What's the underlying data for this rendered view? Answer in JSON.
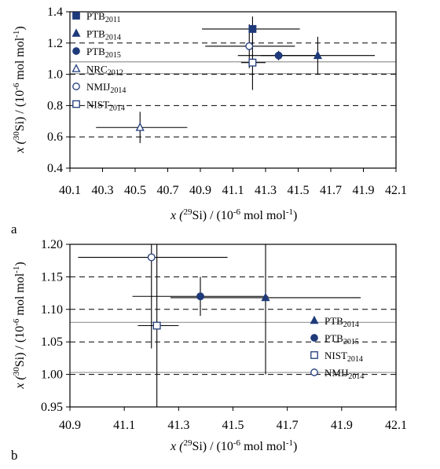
{
  "chart_data": [
    {
      "panel_label": "a",
      "type": "scatter",
      "xlabel": "x (29Si) / (10-6 mol mol-1)",
      "ylabel": "x (30Si) / (10-6 mol mol-1)",
      "xlim": [
        40.1,
        42.1
      ],
      "ylim": [
        0.4,
        1.4
      ],
      "xticks": [
        "40.1",
        "40.3",
        "40.5",
        "40.7",
        "40.9",
        "41.1",
        "41.3",
        "41.5",
        "41.7",
        "41.9",
        "42.1"
      ],
      "yticks": [
        "0.4",
        "0.6",
        "0.8",
        "1.0",
        "1.2",
        "1.4"
      ],
      "dashed_gridlines_y": [
        0.6,
        0.8,
        1.0,
        1.2
      ],
      "solid_reference_lines_y": [
        1.005,
        1.08
      ],
      "legend_position": "left",
      "series": [
        {
          "name": "PTB2011",
          "base": "PTB",
          "sub": "2011",
          "marker": "square-filled",
          "x": 41.22,
          "y": 1.29,
          "xerr": [
            40.91,
            41.51
          ],
          "yerr": [
            1.21,
            1.37
          ]
        },
        {
          "name": "PTB2014",
          "base": "PTB",
          "sub": "2014",
          "marker": "triangle-filled",
          "x": 41.62,
          "y": 1.12,
          "xerr": [
            41.27,
            41.97
          ],
          "yerr": [
            1.0,
            1.24
          ]
        },
        {
          "name": "PTB2015",
          "base": "PTB",
          "sub": "2015",
          "marker": "circle-filled",
          "x": 41.38,
          "y": 1.12,
          "xerr": [
            41.13,
            41.63
          ],
          "yerr": [
            1.09,
            1.15
          ]
        },
        {
          "name": "NRC2012",
          "base": "NRC",
          "sub": "2012",
          "marker": "triangle-open",
          "x": 40.53,
          "y": 0.66,
          "xerr": [
            40.26,
            40.82
          ],
          "yerr": [
            0.56,
            0.76
          ]
        },
        {
          "name": "NMIJ2014",
          "base": "NMIJ",
          "sub": "2014",
          "marker": "circle-open",
          "x": 41.2,
          "y": 1.18,
          "xerr": [
            40.93,
            41.48
          ],
          "yerr": [
            1.04,
            1.32
          ]
        },
        {
          "name": "NIST2014",
          "base": "NIST",
          "sub": "2014",
          "marker": "square-open",
          "x": 41.22,
          "y": 1.075,
          "xerr": [
            41.15,
            41.3
          ],
          "yerr": [
            0.9,
            1.22
          ]
        }
      ]
    },
    {
      "panel_label": "b",
      "type": "scatter",
      "xlabel": "x (29Si) / (10-6 mol mol-1)",
      "ylabel": "x (30Si) / (10-6 mol mol-1)",
      "xlim": [
        40.9,
        42.1
      ],
      "ylim": [
        0.95,
        1.2
      ],
      "xticks": [
        "40.9",
        "41.1",
        "41.3",
        "41.5",
        "41.7",
        "41.9",
        "42.1"
      ],
      "yticks": [
        "0.95",
        "1.00",
        "1.05",
        "1.10",
        "1.15",
        "1.20"
      ],
      "dashed_gridlines_y": [
        1.0,
        1.05,
        1.1,
        1.15
      ],
      "solid_reference_lines_y": [
        1.003,
        1.08
      ],
      "legend_position": "right",
      "series": [
        {
          "name": "PTB2014",
          "base": "PTB",
          "sub": "2014",
          "marker": "triangle-filled",
          "x": 41.62,
          "y": 1.118,
          "xerr": [
            41.27,
            41.97
          ],
          "yerr": [
            1.0,
            1.2
          ]
        },
        {
          "name": "PTB2015",
          "base": "PTB",
          "sub": "2015",
          "marker": "circle-filled",
          "x": 41.38,
          "y": 1.12,
          "xerr": [
            41.13,
            41.63
          ],
          "yerr": [
            1.09,
            1.15
          ]
        },
        {
          "name": "NIST2014",
          "base": "NIST",
          "sub": "2014",
          "marker": "square-open",
          "x": 41.22,
          "y": 1.075,
          "xerr": [
            41.15,
            41.3
          ],
          "yerr": [
            0.9,
            1.22
          ]
        },
        {
          "name": "NMIJ2014",
          "base": "NMIJ",
          "sub": "2014",
          "marker": "circle-open",
          "x": 41.2,
          "y": 1.18,
          "xerr": [
            40.93,
            41.48
          ],
          "yerr": [
            1.04,
            1.32
          ]
        }
      ]
    }
  ],
  "axis_text": {
    "x_prefix": "x (",
    "x_iso": "29",
    "y_iso": "30",
    "element": "Si",
    "unit_open": ") / (10",
    "unit_exp": "-6",
    "unit_mid": " mol mol",
    "unit_exp2": "-1",
    "unit_close": ")"
  },
  "colors": {
    "marker": "#1f3a7a",
    "errorbar": "#000000",
    "dashed_grid": "#000000",
    "reference_line": "#a0a0a0"
  }
}
